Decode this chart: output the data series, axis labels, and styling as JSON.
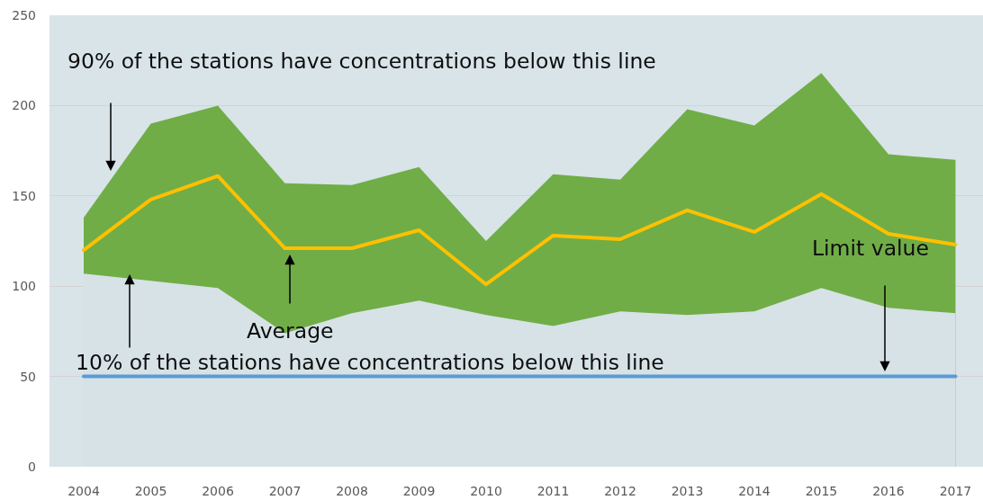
{
  "chart_data": {
    "type": "line",
    "categories": [
      "2004",
      "2005",
      "2006",
      "2007",
      "2008",
      "2009",
      "2010",
      "2011",
      "2012",
      "2013",
      "2014",
      "2015",
      "2016",
      "2017"
    ],
    "ylim": [
      0,
      250
    ],
    "yticks": [
      0,
      50,
      100,
      150,
      200,
      250
    ],
    "grid": "y",
    "legend": false,
    "marker": "none",
    "series": [
      {
        "type": "area",
        "color": "#70ad47",
        "values": [
          138,
          190,
          200,
          157,
          156,
          166,
          125,
          162,
          159,
          198,
          189,
          218,
          173,
          170
        ]
      },
      {
        "type": "area",
        "color": "#d6e2e6",
        "values": [
          107,
          103,
          99,
          74,
          85,
          92,
          84,
          78,
          86,
          84,
          86,
          99,
          88,
          85
        ]
      },
      {
        "name": "Average",
        "color": "#ffc000",
        "values": [
          120,
          148,
          161,
          121,
          121,
          131,
          101,
          128,
          126,
          142,
          130,
          151,
          129,
          123
        ]
      },
      {
        "name": "Limit value",
        "color": "#5b9bd5",
        "values": [
          50,
          50,
          50,
          50,
          50,
          50,
          50,
          50,
          50,
          50,
          50,
          50,
          50,
          50
        ]
      }
    ],
    "annotations": [
      "90% of the stations have concentrations below this line",
      "10% of the stations have concentrations below this line"
    ]
  }
}
